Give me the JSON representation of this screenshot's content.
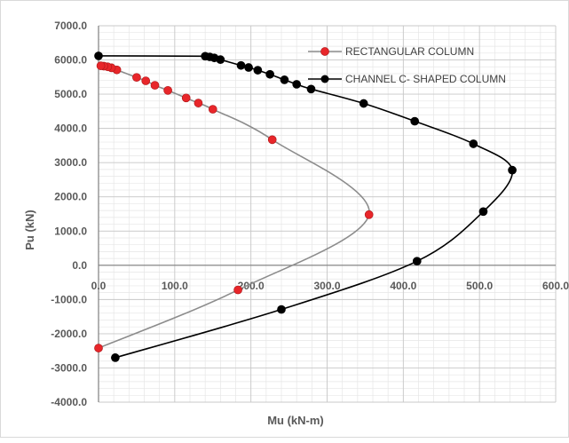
{
  "chart_data": {
    "type": "scatter",
    "title": "",
    "xlabel": "Mu (kN-m)",
    "ylabel": "Pu (kN)",
    "xlim": [
      0,
      600
    ],
    "ylim": [
      -4000,
      7000
    ],
    "x_ticks": [
      "0.0",
      "100.0",
      "200.0",
      "300.0",
      "400.0",
      "500.0",
      "600.0"
    ],
    "y_ticks": [
      "7000.0",
      "6000.0",
      "5000.0",
      "4000.0",
      "3000.0",
      "2000.0",
      "1000.0",
      "0.0",
      "-1000.0",
      "-2000.0",
      "-3000.0",
      "-4000.0"
    ],
    "grid": true,
    "legend_position": "top-right",
    "series": [
      {
        "name": "RECTANGULAR COLUMN",
        "line_color": "#8c8c8c",
        "marker_color": "#e8262a",
        "points": [
          [
            0,
            -2420
          ],
          [
            183,
            -720
          ],
          [
            355,
            1480
          ],
          [
            228,
            3670
          ],
          [
            150,
            4560
          ],
          [
            131,
            4740
          ],
          [
            115,
            4890
          ],
          [
            91,
            5110
          ],
          [
            74,
            5260
          ],
          [
            62,
            5390
          ],
          [
            50,
            5490
          ],
          [
            24,
            5710
          ],
          [
            17,
            5770
          ],
          [
            12,
            5800
          ],
          [
            7,
            5820
          ],
          [
            3,
            5830
          ]
        ]
      },
      {
        "name": "CHANNEL C- SHAPED COLUMN",
        "line_color": "#000000",
        "marker_color": "#000000",
        "points": [
          [
            22,
            -2700
          ],
          [
            240,
            -1290
          ],
          [
            418,
            120
          ],
          [
            505,
            1570
          ],
          [
            543,
            2780
          ],
          [
            492,
            3550
          ],
          [
            415,
            4210
          ],
          [
            348,
            4730
          ],
          [
            279,
            5150
          ],
          [
            260,
            5290
          ],
          [
            244,
            5420
          ],
          [
            225,
            5580
          ],
          [
            209,
            5700
          ],
          [
            197,
            5780
          ],
          [
            187,
            5840
          ],
          [
            160,
            6010
          ],
          [
            152,
            6060
          ],
          [
            146,
            6090
          ],
          [
            140,
            6110
          ],
          [
            0,
            6120
          ]
        ]
      }
    ]
  }
}
